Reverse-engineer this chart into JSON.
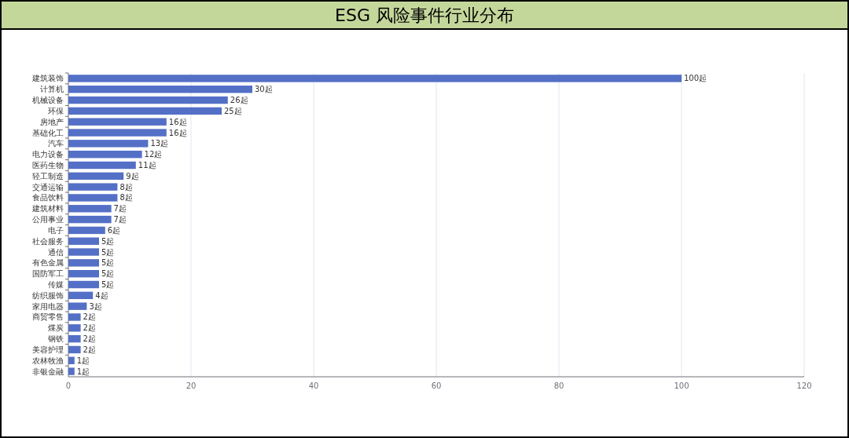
{
  "chart_data": {
    "type": "bar",
    "orientation": "horizontal",
    "title": "ESG 风险事件行业分布",
    "categories": [
      "建筑装饰",
      "计算机",
      "机械设备",
      "环保",
      "房地产",
      "基础化工",
      "汽车",
      "电力设备",
      "医药生物",
      "轻工制造",
      "交通运输",
      "食品饮料",
      "建筑材料",
      "公用事业",
      "电子",
      "社会服务",
      "通信",
      "有色金属",
      "国防军工",
      "传媒",
      "纺织服饰",
      "家用电器",
      "商贸零售",
      "煤炭",
      "钢铁",
      "美容护理",
      "农林牧渔",
      "非银金融"
    ],
    "values": [
      100,
      30,
      26,
      25,
      16,
      16,
      13,
      12,
      11,
      9,
      8,
      8,
      7,
      7,
      6,
      5,
      5,
      5,
      5,
      5,
      4,
      3,
      2,
      2,
      2,
      2,
      1,
      1
    ],
    "value_labels": [
      "100起",
      "30起",
      "26起",
      "25起",
      "16起",
      "16起",
      "13起",
      "12起",
      "11起",
      "9起",
      "8起",
      "8起",
      "7起",
      "7起",
      "6起",
      "5起",
      "5起",
      "5起",
      "5起",
      "5起",
      "4起",
      "3起",
      "2起",
      "2起",
      "2起",
      "2起",
      "1起",
      "1起"
    ],
    "color": "#5470c6",
    "xlim": [
      0,
      120
    ],
    "xticks": [
      0,
      20,
      40,
      60,
      80,
      100,
      120
    ],
    "grid": "x"
  }
}
